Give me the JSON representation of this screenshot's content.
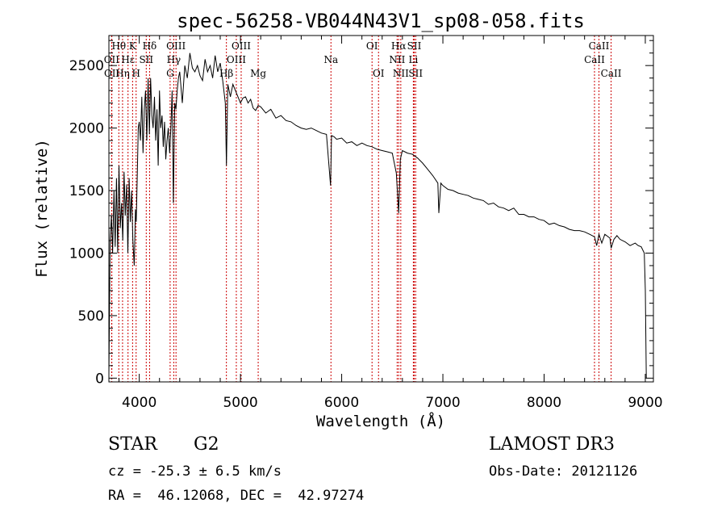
{
  "chart_data": {
    "type": "line",
    "title": "spec-56258-VB044N43V1_sp08-058.fits",
    "xlabel": "Wavelength (Å)",
    "ylabel": "Flux (relative)",
    "xlim": [
      3700,
      9080
    ],
    "ylim": [
      -30,
      2740
    ],
    "xticks": [
      4000,
      5000,
      6000,
      7000,
      8000,
      9000
    ],
    "yticks": [
      0,
      500,
      1000,
      1500,
      2000,
      2500
    ],
    "series": [
      {
        "name": "flux",
        "x": [
          3700,
          3712,
          3725,
          3737,
          3750,
          3762,
          3775,
          3787,
          3800,
          3812,
          3825,
          3837,
          3850,
          3862,
          3875,
          3887,
          3900,
          3912,
          3925,
          3937,
          3950,
          3962,
          3970,
          3980,
          3990,
          4000,
          4012,
          4025,
          4037,
          4050,
          4062,
          4075,
          4087,
          4100,
          4112,
          4125,
          4137,
          4150,
          4162,
          4175,
          4187,
          4200,
          4212,
          4225,
          4237,
          4250,
          4262,
          4275,
          4287,
          4300,
          4312,
          4325,
          4337,
          4350,
          4362,
          4375,
          4387,
          4400,
          4425,
          4450,
          4475,
          4500,
          4525,
          4550,
          4575,
          4600,
          4625,
          4650,
          4675,
          4700,
          4725,
          4750,
          4775,
          4800,
          4825,
          4850,
          4861,
          4875,
          4900,
          4925,
          4950,
          4975,
          5000,
          5025,
          5050,
          5075,
          5100,
          5125,
          5150,
          5175,
          5200,
          5250,
          5300,
          5350,
          5400,
          5450,
          5500,
          5550,
          5600,
          5650,
          5700,
          5750,
          5800,
          5850,
          5890,
          5900,
          5925,
          5950,
          6000,
          6050,
          6100,
          6150,
          6200,
          6250,
          6300,
          6350,
          6400,
          6450,
          6500,
          6540,
          6563,
          6580,
          6600,
          6650,
          6700,
          6750,
          6800,
          6850,
          6900,
          6950,
          6960,
          6980,
          7000,
          7050,
          7100,
          7150,
          7200,
          7250,
          7300,
          7350,
          7400,
          7450,
          7500,
          7550,
          7600,
          7650,
          7700,
          7750,
          7800,
          7850,
          7900,
          7950,
          8000,
          8050,
          8100,
          8150,
          8200,
          8250,
          8300,
          8350,
          8400,
          8450,
          8498,
          8520,
          8542,
          8570,
          8600,
          8650,
          8662,
          8690,
          8720,
          8750,
          8800,
          8850,
          8900,
          8930,
          8960,
          8990,
          9000,
          9010
        ],
        "values": [
          30,
          1100,
          1300,
          1000,
          1500,
          1050,
          1600,
          1000,
          1700,
          1200,
          1400,
          1100,
          1650,
          1300,
          1550,
          1000,
          1600,
          1250,
          1500,
          1100,
          900,
          1350,
          1250,
          1600,
          2000,
          2050,
          1900,
          2250,
          1800,
          2150,
          2300,
          1900,
          2400,
          1950,
          2400,
          2100,
          2000,
          2250,
          1900,
          2150,
          1700,
          2300,
          2000,
          2100,
          1850,
          2050,
          1750,
          1900,
          2000,
          1800,
          2000,
          2300,
          1400,
          2200,
          2150,
          2300,
          2400,
          2450,
          2200,
          2500,
          2400,
          2600,
          2480,
          2450,
          2500,
          2420,
          2380,
          2550,
          2450,
          2500,
          2400,
          2580,
          2450,
          2520,
          2380,
          2200,
          1700,
          2350,
          2250,
          2350,
          2300,
          2250,
          2200,
          2240,
          2250,
          2200,
          2230,
          2160,
          2140,
          2180,
          2170,
          2120,
          2150,
          2080,
          2100,
          2060,
          2050,
          2020,
          2000,
          1990,
          2000,
          1980,
          1960,
          1950,
          1540,
          1940,
          1930,
          1910,
          1920,
          1880,
          1890,
          1860,
          1880,
          1860,
          1850,
          1830,
          1820,
          1810,
          1800,
          1640,
          1320,
          1750,
          1820,
          1800,
          1790,
          1760,
          1720,
          1670,
          1620,
          1560,
          1320,
          1560,
          1540,
          1510,
          1500,
          1480,
          1470,
          1460,
          1440,
          1430,
          1420,
          1390,
          1400,
          1370,
          1360,
          1340,
          1360,
          1310,
          1310,
          1290,
          1290,
          1270,
          1260,
          1230,
          1240,
          1220,
          1210,
          1190,
          1180,
          1180,
          1170,
          1150,
          1130,
          1060,
          1150,
          1080,
          1150,
          1120,
          1040,
          1110,
          1140,
          1110,
          1090,
          1060,
          1080,
          1060,
          1050,
          1000,
          700,
          0
        ]
      }
    ],
    "lines": [
      {
        "label": "Hθ",
        "x": 3798,
        "row": 1
      },
      {
        "label": "OII",
        "x": 3727,
        "row": 2
      },
      {
        "label": "OII",
        "x": 3729,
        "row": 3
      },
      {
        "label": "Hη",
        "x": 3835,
        "row": 3
      },
      {
        "label": "Hε",
        "x": 3889,
        "row": 2
      },
      {
        "label": "K",
        "x": 3934,
        "row": 1
      },
      {
        "label": "H",
        "x": 3969,
        "row": 3
      },
      {
        "label": "SII",
        "x": 4069,
        "row": 2
      },
      {
        "label": "Hδ",
        "x": 4102,
        "row": 1
      },
      {
        "label": "OIII",
        "x": 4363,
        "row": 1
      },
      {
        "label": "Hγ",
        "x": 4341,
        "row": 2
      },
      {
        "label": "G",
        "x": 4305,
        "row": 3
      },
      {
        "label": "Hβ",
        "x": 4861,
        "row": 3
      },
      {
        "label": "OIII",
        "x": 4959,
        "row": 2
      },
      {
        "label": "OIII",
        "x": 5007,
        "row": 1
      },
      {
        "label": "Mg",
        "x": 5175,
        "row": 3
      },
      {
        "label": "Na",
        "x": 5894,
        "row": 2
      },
      {
        "label": "OI",
        "x": 6300,
        "row": 1
      },
      {
        "label": "OI",
        "x": 6364,
        "row": 3
      },
      {
        "label": "NII",
        "x": 6548,
        "row": 2
      },
      {
        "label": "Hα",
        "x": 6563,
        "row": 1
      },
      {
        "label": "NII",
        "x": 6584,
        "row": 3
      },
      {
        "label": "Li",
        "x": 6708,
        "row": 2
      },
      {
        "label": "SII",
        "x": 6717,
        "row": 1
      },
      {
        "label": "SII",
        "x": 6731,
        "row": 3
      },
      {
        "label": "CaII",
        "x": 8498,
        "row": 2
      },
      {
        "label": "CaII",
        "x": 8542,
        "row": 1
      },
      {
        "label": "CaII",
        "x": 8662,
        "row": 3
      }
    ]
  },
  "info": {
    "object_class": "STAR",
    "subclass": "G2",
    "survey": "LAMOST DR3",
    "redshift_text": "cz = -25.3 ± 6.5 km/s",
    "obs_date_text": "Obs-Date: 20121126",
    "coords_text": "RA =  46.12068, DEC =  42.97274"
  },
  "colors": {
    "line_marker": "#cc0000",
    "spectrum": "#000000",
    "axis": "#000000"
  }
}
